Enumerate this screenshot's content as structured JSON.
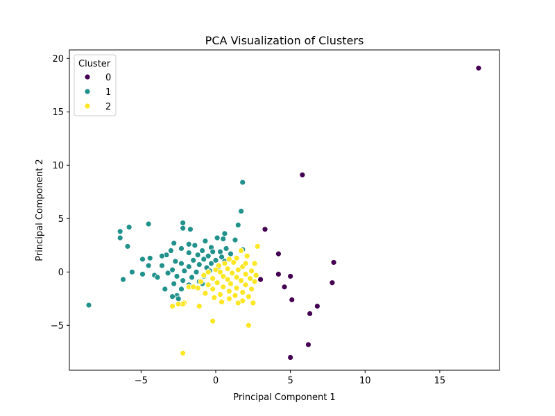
{
  "chart_data": {
    "type": "scatter",
    "title": "PCA Visualization of Clusters",
    "xlabel": "Principal Component 1",
    "ylabel": "Principal Component 2",
    "xlim": [
      -9.8,
      19.0
    ],
    "ylim": [
      -9.2,
      20.8
    ],
    "xticks": [
      -5,
      0,
      5,
      10,
      15
    ],
    "yticks": [
      -5,
      0,
      5,
      10,
      15,
      20
    ],
    "grid": false,
    "legend": {
      "title": "Cluster",
      "placement": "upper-left"
    },
    "series": [
      {
        "name": "0",
        "color": "#440154",
        "points": [
          [
            17.6,
            19.1
          ],
          [
            5.8,
            9.1
          ],
          [
            3.3,
            4.0
          ],
          [
            4.2,
            1.7
          ],
          [
            7.9,
            0.9
          ],
          [
            4.2,
            -0.2
          ],
          [
            5.0,
            -0.4
          ],
          [
            3.0,
            -0.7
          ],
          [
            7.8,
            -1.0
          ],
          [
            4.6,
            -1.4
          ],
          [
            5.1,
            -2.6
          ],
          [
            6.8,
            -3.2
          ],
          [
            6.3,
            -3.9
          ],
          [
            6.2,
            -6.8
          ],
          [
            5.0,
            -8.0
          ]
        ]
      },
      {
        "name": "1",
        "color": "#21918c",
        "points": [
          [
            1.8,
            8.4
          ],
          [
            1.7,
            5.7
          ],
          [
            -4.5,
            4.5
          ],
          [
            -2.2,
            4.6
          ],
          [
            1.5,
            4.4
          ],
          [
            -5.8,
            4.2
          ],
          [
            -2.2,
            4.1
          ],
          [
            -1.7,
            4.0
          ],
          [
            -6.4,
            3.8
          ],
          [
            0.6,
            3.6
          ],
          [
            -6.4,
            3.2
          ],
          [
            0.1,
            3.2
          ],
          [
            0.5,
            3.1
          ],
          [
            1.3,
            3.0
          ],
          [
            -5.9,
            2.4
          ],
          [
            -0.7,
            2.9
          ],
          [
            -2.8,
            2.7
          ],
          [
            -1.8,
            2.6
          ],
          [
            -1.4,
            2.5
          ],
          [
            -0.3,
            2.3
          ],
          [
            0.7,
            2.2
          ],
          [
            1.8,
            2.1
          ],
          [
            -2.3,
            2.2
          ],
          [
            -3.0,
            2.0
          ],
          [
            -0.9,
            2.0
          ],
          [
            -0.2,
            1.9
          ],
          [
            0.3,
            1.9
          ],
          [
            1.0,
            1.7
          ],
          [
            -1.8,
            1.8
          ],
          [
            -3.3,
            1.6
          ],
          [
            -3.6,
            1.5
          ],
          [
            -1.2,
            1.6
          ],
          [
            -0.5,
            1.5
          ],
          [
            0.4,
            1.4
          ],
          [
            1.4,
            1.3
          ],
          [
            -4.4,
            1.3
          ],
          [
            -4.9,
            1.2
          ],
          [
            -2.7,
            1.0
          ],
          [
            -1.5,
            1.1
          ],
          [
            -0.8,
            1.2
          ],
          [
            0.0,
            1.1
          ],
          [
            0.6,
            1.0
          ],
          [
            -2.3,
            0.8
          ],
          [
            -1.1,
            0.7
          ],
          [
            -0.3,
            0.8
          ],
          [
            -3.6,
            0.6
          ],
          [
            -4.5,
            0.6
          ],
          [
            -1.8,
            0.5
          ],
          [
            -0.6,
            0.4
          ],
          [
            0.2,
            0.5
          ],
          [
            -2.9,
            0.2
          ],
          [
            -2.1,
            0.1
          ],
          [
            -1.3,
            0.0
          ],
          [
            -0.4,
            0.1
          ],
          [
            -5.6,
            0.0
          ],
          [
            -3.2,
            -0.1
          ],
          [
            -4.1,
            -0.3
          ],
          [
            -2.6,
            -0.4
          ],
          [
            -1.6,
            -0.5
          ],
          [
            -0.8,
            -0.4
          ],
          [
            -4.9,
            -0.2
          ],
          [
            -3.9,
            -0.5
          ],
          [
            -2.2,
            -0.8
          ],
          [
            -1.1,
            -0.9
          ],
          [
            -6.2,
            -0.7
          ],
          [
            -2.8,
            -1.1
          ],
          [
            -1.8,
            -1.2
          ],
          [
            -3.4,
            -1.6
          ],
          [
            -2.3,
            -1.6
          ],
          [
            -1.5,
            -1.4
          ],
          [
            -2.6,
            -2.2
          ],
          [
            -2.9,
            -2.3
          ],
          [
            -2.5,
            -2.5
          ],
          [
            -8.5,
            -3.1
          ],
          [
            -0.9,
            -1.1
          ]
        ]
      },
      {
        "name": "2",
        "color": "#fde725",
        "points": [
          [
            2.8,
            2.4
          ],
          [
            1.7,
            2.0
          ],
          [
            2.1,
            1.5
          ],
          [
            1.4,
            1.3
          ],
          [
            0.9,
            1.2
          ],
          [
            2.6,
            0.8
          ],
          [
            1.2,
            0.9
          ],
          [
            0.6,
            0.8
          ],
          [
            0.2,
            0.6
          ],
          [
            1.8,
            0.5
          ],
          [
            0.8,
            0.3
          ],
          [
            1.5,
            0.2
          ],
          [
            2.4,
            0.1
          ],
          [
            0.0,
            0.2
          ],
          [
            -0.5,
            0.0
          ],
          [
            0.3,
            0.0
          ],
          [
            1.1,
            -0.1
          ],
          [
            2.0,
            -0.2
          ],
          [
            2.7,
            -0.3
          ],
          [
            -0.8,
            -0.3
          ],
          [
            0.5,
            -0.4
          ],
          [
            1.4,
            -0.5
          ],
          [
            2.3,
            -0.6
          ],
          [
            -0.2,
            -0.6
          ],
          [
            0.8,
            -0.7
          ],
          [
            1.7,
            -0.8
          ],
          [
            2.6,
            -0.9
          ],
          [
            -1.0,
            -0.9
          ],
          [
            0.1,
            -1.0
          ],
          [
            1.0,
            -1.1
          ],
          [
            2.0,
            -1.2
          ],
          [
            -0.5,
            -1.2
          ],
          [
            0.5,
            -1.4
          ],
          [
            1.4,
            -1.5
          ],
          [
            2.4,
            -1.6
          ],
          [
            -1.2,
            -1.5
          ],
          [
            -0.2,
            -1.6
          ],
          [
            0.9,
            -1.8
          ],
          [
            1.8,
            -1.9
          ],
          [
            -0.7,
            -2.0
          ],
          [
            0.3,
            -2.1
          ],
          [
            1.3,
            -2.2
          ],
          [
            2.2,
            -2.3
          ],
          [
            -0.1,
            -2.4
          ],
          [
            0.9,
            -2.5
          ],
          [
            1.8,
            -2.7
          ],
          [
            2.5,
            -2.9
          ],
          [
            0.4,
            -2.8
          ],
          [
            -1.8,
            -1.4
          ],
          [
            -1.5,
            -1.4
          ],
          [
            -2.1,
            -2.9
          ],
          [
            -2.2,
            -3.0
          ],
          [
            -2.5,
            -3.0
          ],
          [
            -2.9,
            -3.2
          ],
          [
            -1.1,
            -3.2
          ],
          [
            -0.2,
            -4.6
          ],
          [
            2.2,
            -5.0
          ],
          [
            -2.2,
            -7.6
          ],
          [
            1.5,
            -2.9
          ],
          [
            2.0,
            0.8
          ]
        ]
      }
    ]
  }
}
